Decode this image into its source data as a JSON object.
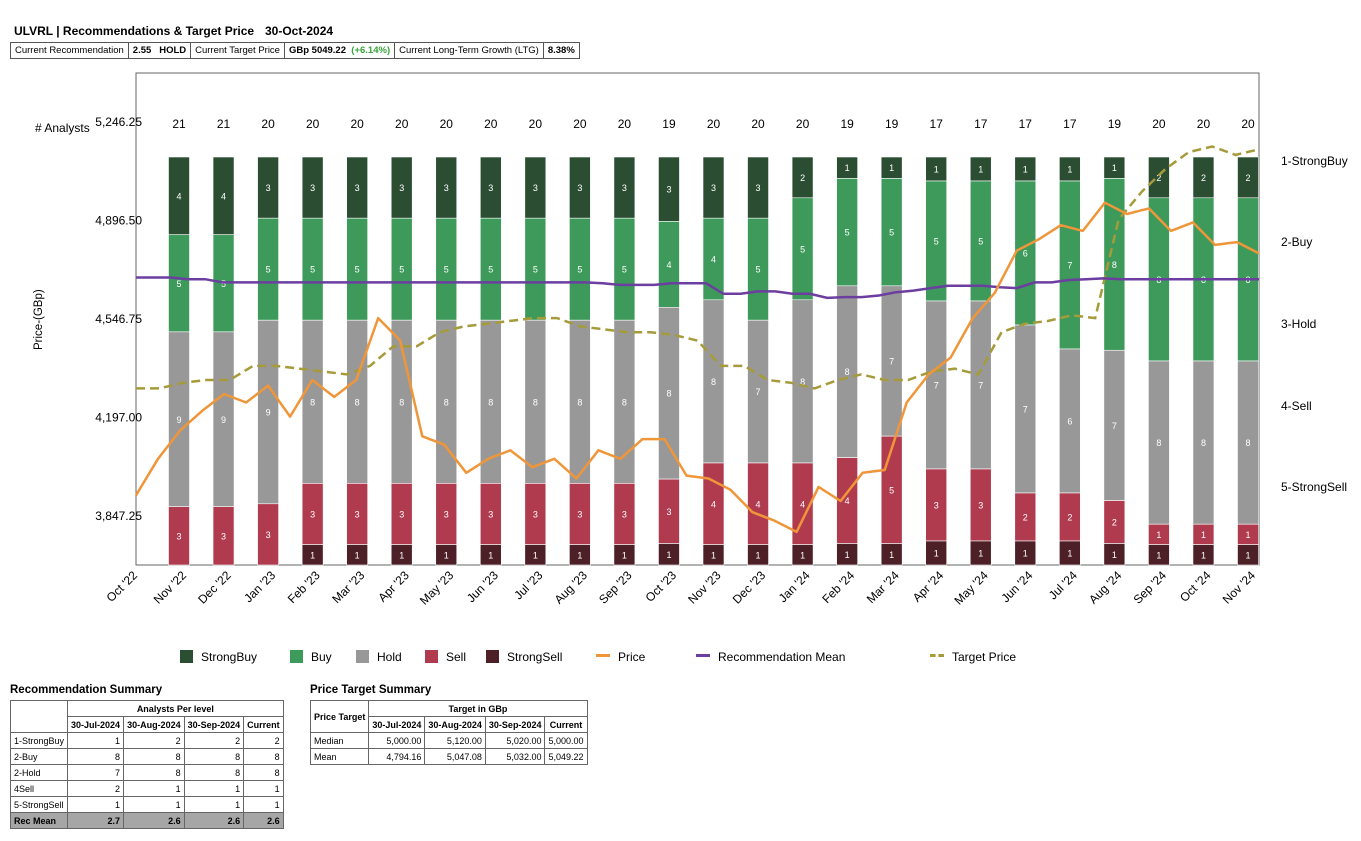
{
  "header": {
    "title": "ULVRL | Recommendations & Target Price",
    "date": "30-Oct-2024",
    "cur_rec_label": "Current Recommendation",
    "cur_rec_value": "2.55",
    "cur_rec_text": "HOLD",
    "cur_tp_label": "Current Target Price",
    "cur_tp_value": "GBp 5049.22",
    "cur_tp_change": "(+6.14%)",
    "ltg_label": "Current Long-Term Growth (LTG)",
    "ltg_value": "8.38%"
  },
  "chart_data": {
    "type": "bar",
    "title": "ULVRL | Recommendations & Target Price",
    "ylabel": "Price-(GBp)",
    "analysts_label": "# Analysts",
    "ylim": [
      3672.375,
      5421.125
    ],
    "yticks": [
      "5,246.25",
      "4,896.50",
      "4,546.75",
      "4,197.00",
      "3,847.25"
    ],
    "ytick_values": [
      5246.25,
      4896.5,
      4546.75,
      4197.0,
      3847.25
    ],
    "right_labels": [
      "1-StrongBuy",
      "2-Buy",
      "3-Hold",
      "4-Sell",
      "5-StrongSell"
    ],
    "x_labels": [
      "Oct '22",
      "Nov '22",
      "Dec '22",
      "Jan '23",
      "Feb '23",
      "Mar '23",
      "Apr '23",
      "May '23",
      "Jun '23",
      "Jul '23",
      "Aug '23",
      "Sep '23",
      "Oct '23",
      "Nov '23",
      "Dec '23",
      "Jan '24",
      "Feb '24",
      "Mar '24",
      "Apr '24",
      "May '24",
      "Jun '24",
      "Jul '24",
      "Aug '24",
      "Sep '24",
      "Oct '24",
      "Nov '24"
    ],
    "series": [
      {
        "name": "StrongBuy",
        "color": "#2b4d32",
        "values": [
          4,
          4,
          3,
          3,
          3,
          3,
          3,
          3,
          3,
          3,
          3,
          3,
          3,
          3,
          2,
          1,
          1,
          1,
          1,
          1,
          1,
          1,
          2,
          2,
          2
        ]
      },
      {
        "name": "Buy",
        "color": "#3d9a5a",
        "values": [
          5,
          5,
          5,
          5,
          5,
          5,
          5,
          5,
          5,
          5,
          5,
          4,
          4,
          5,
          5,
          5,
          5,
          5,
          5,
          6,
          7,
          8,
          8,
          8,
          8
        ]
      },
      {
        "name": "Hold",
        "color": "#989898",
        "values": [
          9,
          9,
          9,
          8,
          8,
          8,
          8,
          8,
          8,
          8,
          8,
          8,
          8,
          7,
          8,
          8,
          7,
          7,
          7,
          7,
          6,
          7,
          8,
          8,
          8
        ]
      },
      {
        "name": "Sell",
        "color": "#b03a4e",
        "values": [
          3,
          3,
          3,
          3,
          3,
          3,
          3,
          3,
          3,
          3,
          3,
          3,
          4,
          4,
          4,
          4,
          5,
          3,
          3,
          2,
          2,
          2,
          1,
          1,
          1
        ]
      },
      {
        "name": "StrongSell",
        "color": "#4d1f26",
        "values": [
          0,
          0,
          0,
          1,
          1,
          1,
          1,
          1,
          1,
          1,
          1,
          1,
          1,
          1,
          1,
          1,
          1,
          1,
          1,
          1,
          1,
          1,
          1,
          1,
          1
        ]
      }
    ],
    "analyst_counts": [
      "21",
      "21",
      "20",
      "20",
      "20",
      "20",
      "20",
      "20",
      "20",
      "20",
      "20",
      "19",
      "20",
      "20",
      "20",
      "19",
      "19",
      "17",
      "17",
      "17",
      "17",
      "19",
      "20",
      "20",
      "20"
    ],
    "price": {
      "name": "Price",
      "color": "#f0963a",
      "values": [
        3920,
        4050,
        4150,
        4220,
        4280,
        4250,
        4310,
        4200,
        4330,
        4270,
        4330,
        4550,
        4470,
        4130,
        4100,
        4000,
        4050,
        4080,
        4020,
        4050,
        3980,
        4080,
        4050,
        4120,
        4120,
        3990,
        3980,
        3940,
        3860,
        3830,
        3790,
        3950,
        3900,
        4000,
        4010,
        4250,
        4350,
        4410,
        4550,
        4640,
        4790,
        4830,
        4880,
        4860,
        4960,
        4920,
        4940,
        4860,
        4890,
        4810,
        4820,
        4780
      ]
    },
    "rec_mean": {
      "name": "Recommendation Mean",
      "color": "#6b3ea0",
      "values": [
        2.43,
        2.43,
        2.43,
        2.45,
        2.45,
        2.49,
        2.49,
        2.49,
        2.49,
        2.49,
        2.49,
        2.49,
        2.49,
        2.49,
        2.49,
        2.49,
        2.49,
        2.49,
        2.49,
        2.49,
        2.49,
        2.49,
        2.49,
        2.49,
        2.49,
        2.49,
        2.49,
        2.5,
        2.52,
        2.52,
        2.52,
        2.5,
        2.5,
        2.5,
        2.63,
        2.63,
        2.6,
        2.6,
        2.63,
        2.63,
        2.68,
        2.67,
        2.67,
        2.65,
        2.61,
        2.59,
        2.56,
        2.53,
        2.53,
        2.53,
        2.55,
        2.56,
        2.49,
        2.49,
        2.46,
        2.45,
        2.44,
        2.45,
        2.45,
        2.45,
        2.45,
        2.45,
        2.45,
        2.45,
        2.45,
        2.45
      ]
    },
    "target_price": {
      "name": "Target Price",
      "color": "#a69b3a",
      "values": [
        4300,
        4300,
        4320,
        4330,
        4330,
        4380,
        4380,
        4370,
        4360,
        4350,
        4380,
        4450,
        4450,
        4500,
        4520,
        4530,
        4540,
        4550,
        4550,
        4520,
        4510,
        4500,
        4500,
        4490,
        4470,
        4380,
        4380,
        4330,
        4320,
        4300,
        4330,
        4350,
        4330,
        4330,
        4360,
        4370,
        4350,
        4500,
        4530,
        4540,
        4560,
        4550,
        4900,
        5000,
        5080,
        5140,
        5160,
        5130,
        5150
      ]
    },
    "legend": [
      "StrongBuy",
      "Buy",
      "Hold",
      "Sell",
      "StrongSell",
      "Price",
      "Recommendation Mean",
      "Target Price"
    ]
  },
  "rec_summary": {
    "title": "Recommendation Summary",
    "group_header": "Analysts Per level",
    "columns": [
      "30-Jul-2024",
      "30-Aug-2024",
      "30-Sep-2024",
      "Current"
    ],
    "rows": [
      {
        "label": "1-StrongBuy",
        "values": [
          "1",
          "2",
          "2",
          "2"
        ]
      },
      {
        "label": "2-Buy",
        "values": [
          "8",
          "8",
          "8",
          "8"
        ]
      },
      {
        "label": "2-Hold",
        "values": [
          "7",
          "8",
          "8",
          "8"
        ]
      },
      {
        "label": "4Sell",
        "values": [
          "2",
          "1",
          "1",
          "1"
        ]
      },
      {
        "label": "5-StrongSell",
        "values": [
          "1",
          "1",
          "1",
          "1"
        ]
      }
    ],
    "mean_row": {
      "label": "Rec Mean",
      "values": [
        "2.7",
        "2.6",
        "2.6",
        "2.6"
      ]
    }
  },
  "pt_summary": {
    "title": "Price Target Summary",
    "corner": "Price Target",
    "group_header": "Target in GBp",
    "columns": [
      "30-Jul-2024",
      "30-Aug-2024",
      "30-Sep-2024",
      "Current"
    ],
    "rows": [
      {
        "label": "Median",
        "values": [
          "5,000.00",
          "5,120.00",
          "5,020.00",
          "5,000.00"
        ]
      },
      {
        "label": "Mean",
        "values": [
          "4,794.16",
          "5,047.08",
          "5,032.00",
          "5,049.22"
        ]
      }
    ]
  }
}
